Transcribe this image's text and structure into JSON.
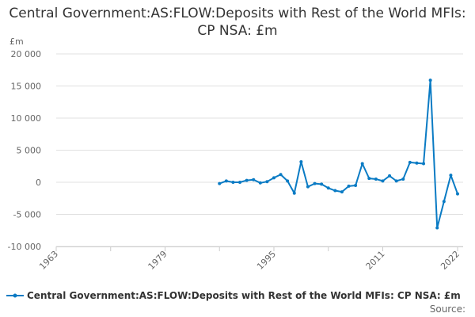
{
  "chart_data": {
    "type": "line",
    "title": "Central Government:AS:FLOW:Deposits with Rest of the World MFIs: CP NSA: £m",
    "ylabel": "£m",
    "xlabel": "",
    "xlim": [
      1963,
      2022
    ],
    "ylim": [
      -10000,
      20000
    ],
    "x_ticks": [
      "1963",
      "1979",
      "1995",
      "2011",
      "2022"
    ],
    "y_ticks": [
      "20 000",
      "15 000",
      "10 000",
      "5 000",
      "0",
      "-5 000",
      "-10 000"
    ],
    "y_tick_values": [
      20000,
      15000,
      10000,
      5000,
      0,
      -5000,
      -10000
    ],
    "grid": true,
    "legend_position": "bottom",
    "series": [
      {
        "name": "Central Government:AS:FLOW:Deposits with Rest of the World MFIs: CP NSA: £m",
        "color": "#0a7bc4",
        "x": [
          1987,
          1988,
          1989,
          1990,
          1991,
          1992,
          1993,
          1994,
          1995,
          1996,
          1997,
          1998,
          1999,
          2000,
          2001,
          2002,
          2003,
          2004,
          2005,
          2006,
          2007,
          2008,
          2009,
          2010,
          2011,
          2012,
          2013,
          2014,
          2015,
          2016,
          2017,
          2018,
          2019,
          2020,
          2021,
          2022
        ],
        "values": [
          -200,
          200,
          0,
          0,
          300,
          400,
          -100,
          100,
          700,
          1200,
          200,
          -1700,
          3200,
          -700,
          -200,
          -300,
          -900,
          -1300,
          -1500,
          -600,
          -500,
          2900,
          600,
          500,
          200,
          1000,
          200,
          500,
          3100,
          3000,
          2900,
          15900,
          -7100,
          -3000,
          1100,
          -1800
        ]
      }
    ]
  },
  "source_label": "Source:"
}
